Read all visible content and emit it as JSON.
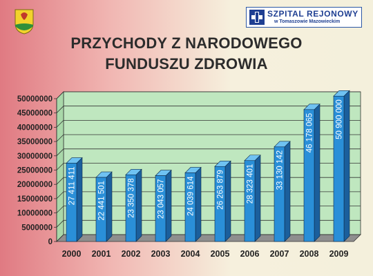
{
  "title_line1": "PRZYCHODY Z NARODOWEGO",
  "title_line2": "FUNDUSZU ZDROWIA",
  "logo": {
    "name": "SZPITAL REJONOWY",
    "subtitle": "w Tomaszowie Mazowieckim"
  },
  "colors": {
    "bar_front": "#2a8fd8",
    "bar_side": "#1b5f9c",
    "bar_top": "#6fc2f2",
    "plot_wall": "#bfe7bf",
    "plot_floor": "#8e8e8e",
    "logo_blue": "#1f3f92"
  },
  "chart_data": {
    "type": "bar",
    "title": "PRZYCHODY Z NARODOWEGO FUNDUSZU ZDROWIA",
    "xlabel": "",
    "ylabel": "",
    "categories": [
      "2000",
      "2001",
      "2002",
      "2003",
      "2004",
      "2005",
      "2006",
      "2007",
      "2008",
      "2009"
    ],
    "values": [
      27411411,
      22441501,
      23350378,
      23043057,
      24039614,
      26263879,
      28323401,
      33130142,
      46178065,
      50900000
    ],
    "data_labels": [
      "27 411 411",
      "22 441 501",
      "23 350 378",
      "23 043 057",
      "24 039 614",
      "26 263 879",
      "28 323 401",
      "33 130 142",
      "46 178 065",
      "50 900 000"
    ],
    "yticks": [
      "0",
      "5000000",
      "10000000",
      "15000000",
      "20000000",
      "25000000",
      "30000000",
      "35000000",
      "40000000",
      "45000000",
      "50000000"
    ],
    "ylim": [
      0,
      50000000
    ],
    "grid": true,
    "style": "3d"
  }
}
